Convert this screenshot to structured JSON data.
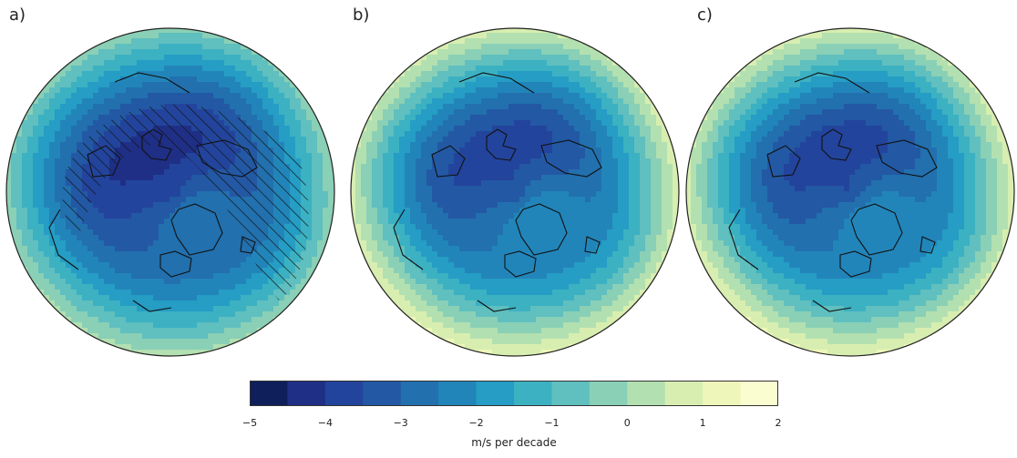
{
  "panels": [
    {
      "label": "a)",
      "hatched": true,
      "pole_value": 0.5
    },
    {
      "label": "b)",
      "hatched": false,
      "pole_value": 1.2
    },
    {
      "label": "c)",
      "hatched": false,
      "pole_value": 1.1
    }
  ],
  "colorbar": {
    "label": "m/s per decade",
    "min": -5,
    "max": 2,
    "step": 0.5,
    "ticks": [
      "−5",
      "−4",
      "−3",
      "−2",
      "−1",
      "0",
      "1",
      "2"
    ],
    "colors": [
      "#0f1f5c",
      "#1f2f86",
      "#23449c",
      "#2358a4",
      "#2270ae",
      "#2285ba",
      "#259dc4",
      "#3cb1c2",
      "#60bfbf",
      "#8ad0b6",
      "#b3e0b0",
      "#d8eeb1",
      "#eef7b9",
      "#fafdd0"
    ]
  }
}
